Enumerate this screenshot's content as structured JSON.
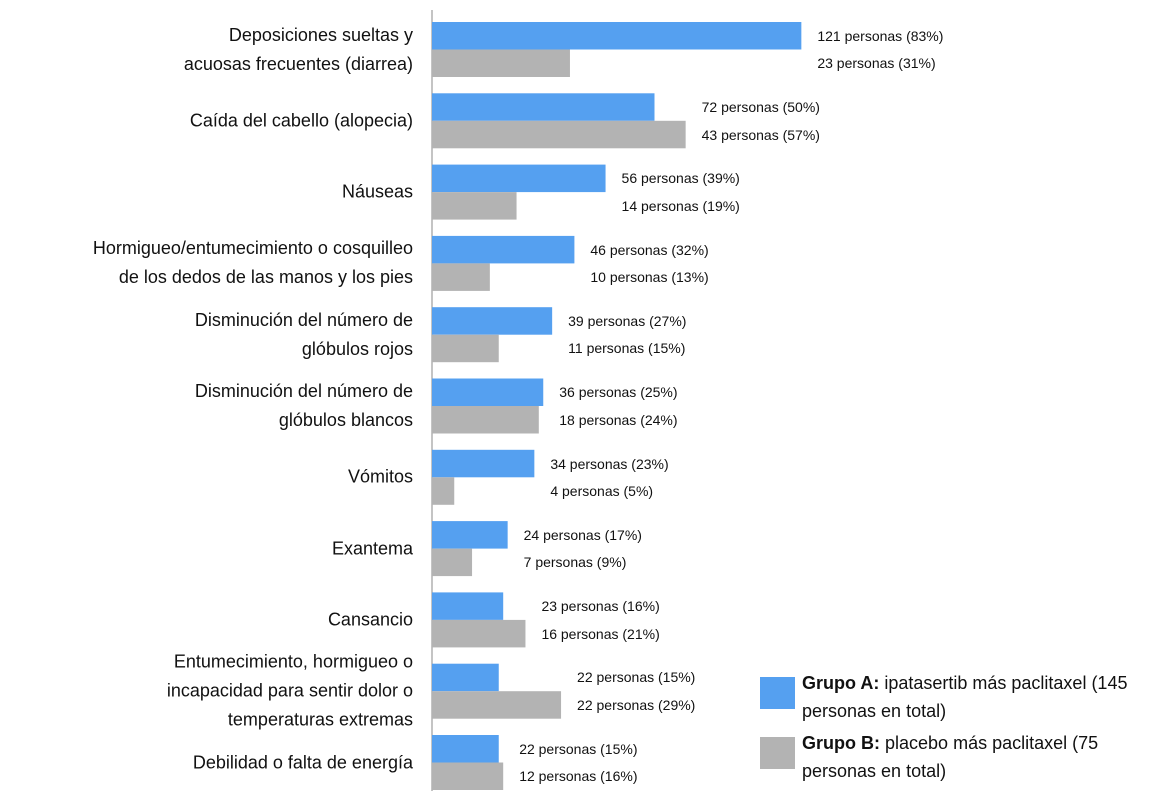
{
  "chart_data": {
    "type": "hbar",
    "categories": [
      "Deposiciones sueltas y\nacuosas frecuentes (diarrea)",
      "Caída del cabello (alopecia)",
      "Náuseas",
      "Hormigueo/entumecimiento o cosquilleo\nde los dedos de las manos y los pies",
      "Disminución del número de\nglóbulos rojos",
      "Disminución del número de\nglóbulos blancos",
      "Vómitos",
      "Exantema",
      "Cansancio",
      "Entumecimiento, hormigueo o\nincapacidad para sentir dolor o\ntemperaturas extremas",
      "Debilidad o falta de energía"
    ],
    "series": [
      {
        "name": "Grupo A:",
        "description": "ipatasertib más paclitaxel (145 personas en total)",
        "color": "#55a0f0",
        "values": [
          83,
          50,
          39,
          32,
          27,
          25,
          23,
          17,
          16,
          15,
          15
        ],
        "value_labels": [
          "121 personas (83%)",
          "72 personas (50%)",
          "56 personas (39%)",
          "46 personas (32%)",
          "39 personas (27%)",
          "36 personas (25%)",
          "34 personas (23%)",
          "24 personas (17%)",
          "23 personas (16%)",
          "22 personas (15%)",
          "22 personas (15%)"
        ]
      },
      {
        "name": "Grupo B:",
        "description": "placebo más paclitaxel (75 personas en total)",
        "color": "#b3b3b3",
        "values": [
          31,
          57,
          19,
          13,
          15,
          24,
          5,
          9,
          21,
          29,
          16
        ],
        "value_labels": [
          "23 personas (31%)",
          "43 personas (57%)",
          "14 personas (19%)",
          "10 personas (13%)",
          "11 personas (15%)",
          "18 personas (24%)",
          "4 personas (5%)",
          "7 personas (9%)",
          "16 personas (21%)",
          "22 personas (29%)",
          "12 personas (16%)"
        ]
      }
    ],
    "xlim": [
      0,
      100
    ]
  }
}
